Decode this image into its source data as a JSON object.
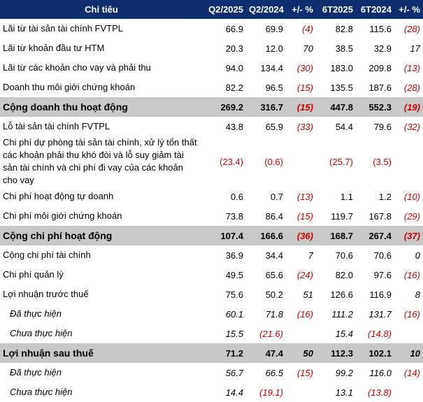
{
  "header": {
    "label": "Chỉ tiêu",
    "q2_2025": "Q2/2025",
    "q2_2024": "Q2/2024",
    "q_change": "+/- %",
    "h1_2025": "6T2025",
    "h1_2024": "6T2024",
    "h_change": "+/- %"
  },
  "rows": [
    {
      "label": "Lãi từ tài sản tài chính FVTPL",
      "q2_2025": "66.9",
      "q2_2024": "69.9",
      "q_change": "(4)",
      "h1_2025": "82.8",
      "h1_2024": "115.6",
      "h_change": "(28)"
    },
    {
      "label": "Lãi từ khoản đầu tư HTM",
      "q2_2025": "20.3",
      "q2_2024": "12.0",
      "q_change": "70",
      "h1_2025": "38.5",
      "h1_2024": "32.9",
      "h_change": "17"
    },
    {
      "label": "Lãi từ các khoản cho vay và phải thu",
      "q2_2025": "94.0",
      "q2_2024": "134.4",
      "q_change": "(30)",
      "h1_2025": "183.0",
      "h1_2024": "209.8",
      "h_change": "(13)"
    },
    {
      "label": "Doanh thu môi giới chứng khoán",
      "q2_2025": "82.2",
      "q2_2024": "96.5",
      "q_change": "(15)",
      "h1_2025": "135.5",
      "h1_2024": "187.6",
      "h_change": "(28)"
    },
    {
      "label": "Cộng doanh thu hoạt động",
      "q2_2025": "269.2",
      "q2_2024": "316.7",
      "q_change": "(15)",
      "h1_2025": "447.8",
      "h1_2024": "552.3",
      "h_change": "(19)"
    },
    {
      "label": "Lỗ tài sản tài chính FVTPL",
      "q2_2025": "43.8",
      "q2_2024": "65.9",
      "q_change": "(33)",
      "h1_2025": "54.4",
      "h1_2024": "79.6",
      "h_change": "(32)"
    },
    {
      "label": "Chi phí dự phòng tài sản tài chính, xử lý tổn thất các khoản phải thu khó đòi và lỗ suy giảm tài sản tài chính và chi phí đi vay của các khoản cho vay",
      "q2_2025": "(23.4)",
      "q2_2024": "(0.6)",
      "q_change": "",
      "h1_2025": "(25.7)",
      "h1_2024": "(3.5)",
      "h_change": ""
    },
    {
      "label": "Chi phí hoạt động tự doanh",
      "q2_2025": "0.6",
      "q2_2024": "0.7",
      "q_change": "(13)",
      "h1_2025": "1.1",
      "h1_2024": "1.2",
      "h_change": "(10)"
    },
    {
      "label": "Chi phí môi giới chứng khoán",
      "q2_2025": "73.8",
      "q2_2024": "86.4",
      "q_change": "(15)",
      "h1_2025": "119.7",
      "h1_2024": "167.8",
      "h_change": "(29)"
    },
    {
      "label": "Cộng chi phí hoạt động",
      "q2_2025": "107.4",
      "q2_2024": "166.6",
      "q_change": "(36)",
      "h1_2025": "168.7",
      "h1_2024": "267.4",
      "h_change": "(37)"
    },
    {
      "label": "Cộng chi phí tài chính",
      "q2_2025": "36.9",
      "q2_2024": "34.4",
      "q_change": "7",
      "h1_2025": "70.6",
      "h1_2024": "70.6",
      "h_change": "0"
    },
    {
      "label": "Chi phí quản lý",
      "q2_2025": "49.5",
      "q2_2024": "65.6",
      "q_change": "(24)",
      "h1_2025": "82.0",
      "h1_2024": "97.6",
      "h_change": "(16)"
    },
    {
      "label": "Lợi nhuận trước thuế",
      "q2_2025": "75.6",
      "q2_2024": "50.2",
      "q_change": "51",
      "h1_2025": "126.6",
      "h1_2024": "116.9",
      "h_change": "8"
    },
    {
      "label": "Đã thực hiện",
      "q2_2025": "60.1",
      "q2_2024": "71.8",
      "q_change": "(16)",
      "h1_2025": "111.2",
      "h1_2024": "131.7",
      "h_change": "(16)"
    },
    {
      "label": "Chưa thực hiện",
      "q2_2025": "15.5",
      "q2_2024": "(21.6)",
      "q_change": "",
      "h1_2025": "15.4",
      "h1_2024": "(14.8)",
      "h_change": ""
    },
    {
      "label": "Lợi nhuận sau thuế",
      "q2_2025": "71.2",
      "q2_2024": "47.4",
      "q_change": "50",
      "h1_2025": "112.3",
      "h1_2024": "102.1",
      "h_change": "10"
    },
    {
      "label": "Đã thực hiện",
      "q2_2025": "56.7",
      "q2_2024": "66.5",
      "q_change": "(15)",
      "h1_2025": "99.2",
      "h1_2024": "116.0",
      "h_change": "(14)"
    },
    {
      "label": "Chưa thực hiện",
      "q2_2025": "14.4",
      "q2_2024": "(19.1)",
      "q_change": "",
      "h1_2025": "13.1",
      "h1_2024": "(13.8)",
      "h_change": ""
    }
  ],
  "colors": {
    "header_bg": "#0e2f6f",
    "total_row_bg": "#c8c8c8",
    "negative_text": "#cc0000"
  }
}
